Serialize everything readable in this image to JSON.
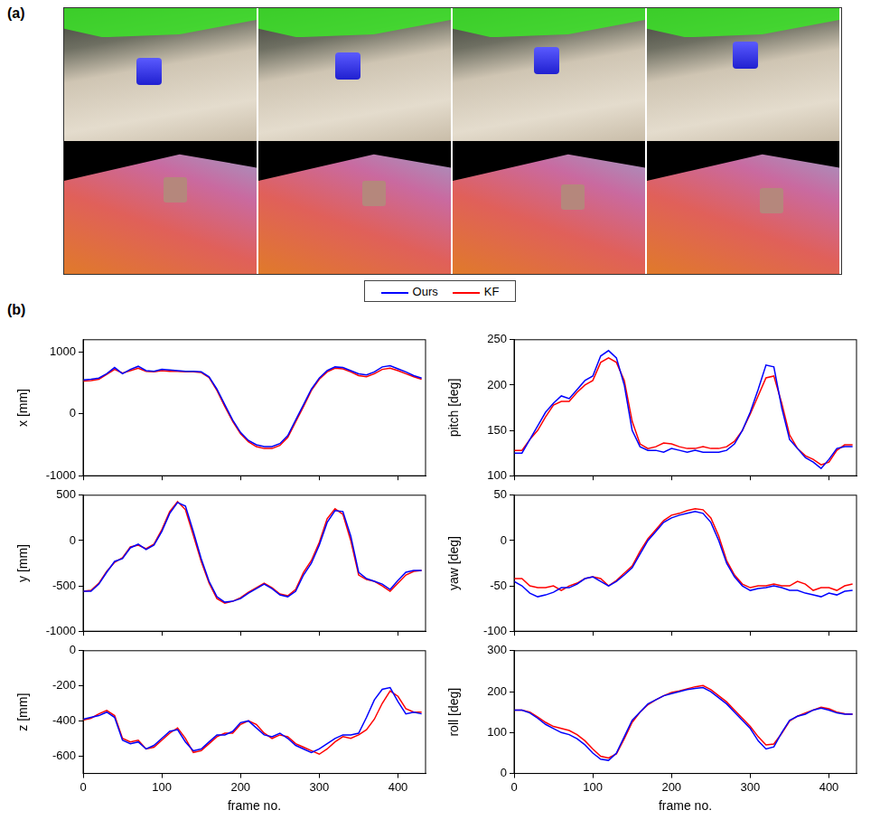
{
  "figure": {
    "panel_a_label": "(a)",
    "panel_b_label": "(b)",
    "legend": "top"
  },
  "chart_data": [
    {
      "type": "line",
      "y_label": "x [mm]",
      "xlim": [
        0,
        435
      ],
      "xticks": [
        0,
        100,
        200,
        300,
        400
      ],
      "ylim": [
        -1000,
        1200
      ],
      "yticks": [
        -1000,
        0,
        1000
      ],
      "grid": false,
      "tick_labels": "y",
      "x": [
        0,
        10,
        20,
        30,
        40,
        50,
        60,
        70,
        80,
        90,
        100,
        110,
        120,
        130,
        140,
        150,
        160,
        170,
        180,
        190,
        200,
        210,
        220,
        230,
        240,
        250,
        260,
        270,
        280,
        290,
        300,
        310,
        320,
        330,
        340,
        350,
        360,
        370,
        380,
        390,
        400,
        410,
        420,
        430
      ],
      "series": [
        {
          "name": "Ours",
          "color": "#0000ff",
          "values": [
            550,
            560,
            580,
            650,
            750,
            650,
            720,
            770,
            700,
            690,
            720,
            710,
            700,
            690,
            690,
            680,
            600,
            400,
            150,
            -100,
            -300,
            -430,
            -500,
            -530,
            -530,
            -480,
            -350,
            -100,
            150,
            400,
            580,
            700,
            760,
            750,
            700,
            650,
            630,
            680,
            760,
            780,
            730,
            680,
            620,
            580
          ]
        },
        {
          "name": "KF",
          "color": "#ff0000",
          "values": [
            530,
            540,
            560,
            640,
            720,
            660,
            700,
            740,
            690,
            680,
            700,
            690,
            690,
            680,
            680,
            670,
            590,
            380,
            120,
            -120,
            -320,
            -450,
            -530,
            -560,
            -560,
            -510,
            -380,
            -130,
            120,
            380,
            560,
            680,
            740,
            730,
            680,
            620,
            600,
            650,
            720,
            740,
            700,
            650,
            600,
            560
          ]
        }
      ]
    },
    {
      "type": "line",
      "y_label": "pitch [deg]",
      "xlim": [
        0,
        435
      ],
      "xticks": [
        0,
        100,
        200,
        300,
        400
      ],
      "ylim": [
        100,
        250
      ],
      "yticks": [
        100,
        150,
        200,
        250
      ],
      "grid": false,
      "tick_labels": "y",
      "x": [
        0,
        10,
        20,
        30,
        40,
        50,
        60,
        70,
        80,
        90,
        100,
        110,
        120,
        130,
        140,
        150,
        160,
        170,
        180,
        190,
        200,
        210,
        220,
        230,
        240,
        250,
        260,
        270,
        280,
        290,
        300,
        310,
        320,
        330,
        340,
        350,
        360,
        370,
        380,
        390,
        400,
        410,
        420,
        430
      ],
      "series": [
        {
          "name": "Ours",
          "color": "#0000ff",
          "values": [
            125,
            125,
            140,
            155,
            170,
            180,
            188,
            185,
            195,
            205,
            210,
            232,
            238,
            230,
            200,
            150,
            132,
            128,
            128,
            126,
            130,
            128,
            126,
            128,
            126,
            126,
            126,
            128,
            135,
            150,
            170,
            195,
            222,
            220,
            175,
            140,
            130,
            120,
            115,
            108,
            118,
            130,
            132,
            132
          ]
        },
        {
          "name": "KF",
          "color": "#ff0000",
          "values": [
            128,
            128,
            140,
            150,
            165,
            178,
            182,
            182,
            192,
            200,
            205,
            225,
            230,
            225,
            205,
            160,
            135,
            130,
            132,
            136,
            135,
            132,
            130,
            130,
            132,
            130,
            130,
            132,
            138,
            150,
            168,
            188,
            208,
            210,
            180,
            145,
            130,
            122,
            118,
            112,
            115,
            128,
            134,
            134
          ]
        }
      ]
    },
    {
      "type": "line",
      "y_label": "y [mm]",
      "xlim": [
        0,
        435
      ],
      "xticks": [
        0,
        100,
        200,
        300,
        400
      ],
      "ylim": [
        -1000,
        500
      ],
      "yticks": [
        -1000,
        -500,
        0,
        500
      ],
      "grid": false,
      "tick_labels": "y",
      "x": [
        0,
        10,
        20,
        30,
        40,
        50,
        60,
        70,
        80,
        90,
        100,
        110,
        120,
        130,
        140,
        150,
        160,
        170,
        180,
        190,
        200,
        210,
        220,
        230,
        240,
        250,
        260,
        270,
        280,
        290,
        300,
        310,
        320,
        330,
        340,
        350,
        360,
        370,
        380,
        390,
        400,
        410,
        420,
        430
      ],
      "series": [
        {
          "name": "Ours",
          "color": "#0000ff",
          "values": [
            -560,
            -560,
            -480,
            -350,
            -230,
            -200,
            -80,
            -40,
            -100,
            -50,
            100,
            300,
            420,
            380,
            100,
            -200,
            -450,
            -620,
            -680,
            -670,
            -640,
            -580,
            -530,
            -480,
            -530,
            -600,
            -620,
            -560,
            -380,
            -250,
            -50,
            200,
            330,
            320,
            50,
            -350,
            -420,
            -450,
            -480,
            -540,
            -440,
            -350,
            -330,
            -330
          ]
        },
        {
          "name": "KF",
          "color": "#ff0000",
          "values": [
            -560,
            -550,
            -470,
            -340,
            -240,
            -190,
            -70,
            -50,
            -90,
            -40,
            120,
            320,
            430,
            340,
            60,
            -230,
            -470,
            -640,
            -690,
            -670,
            -630,
            -570,
            -520,
            -470,
            -520,
            -590,
            -610,
            -540,
            -350,
            -220,
            -20,
            240,
            350,
            290,
            0,
            -380,
            -430,
            -450,
            -500,
            -560,
            -470,
            -380,
            -340,
            -330
          ]
        }
      ]
    },
    {
      "type": "line",
      "y_label": "yaw [deg]",
      "xlim": [
        0,
        435
      ],
      "xticks": [
        0,
        100,
        200,
        300,
        400
      ],
      "ylim": [
        -100,
        50
      ],
      "yticks": [
        -100,
        -50,
        0,
        50
      ],
      "grid": false,
      "tick_labels": "y",
      "x": [
        0,
        10,
        20,
        30,
        40,
        50,
        60,
        70,
        80,
        90,
        100,
        110,
        120,
        130,
        140,
        150,
        160,
        170,
        180,
        190,
        200,
        210,
        220,
        230,
        240,
        250,
        260,
        270,
        280,
        290,
        300,
        310,
        320,
        330,
        340,
        350,
        360,
        370,
        380,
        390,
        400,
        410,
        420,
        430
      ],
      "series": [
        {
          "name": "Ours",
          "color": "#0000ff",
          "values": [
            -45,
            -50,
            -58,
            -62,
            -60,
            -57,
            -52,
            -52,
            -48,
            -42,
            -40,
            -45,
            -50,
            -45,
            -38,
            -30,
            -15,
            0,
            10,
            20,
            25,
            28,
            30,
            32,
            30,
            20,
            0,
            -25,
            -40,
            -50,
            -55,
            -53,
            -52,
            -50,
            -52,
            -55,
            -55,
            -58,
            -60,
            -62,
            -58,
            -60,
            -56,
            -55
          ]
        },
        {
          "name": "KF",
          "color": "#ff0000",
          "values": [
            -42,
            -42,
            -50,
            -52,
            -52,
            -50,
            -55,
            -50,
            -47,
            -42,
            -40,
            -42,
            -50,
            -44,
            -36,
            -28,
            -12,
            2,
            12,
            22,
            28,
            30,
            33,
            35,
            34,
            25,
            5,
            -22,
            -38,
            -48,
            -52,
            -50,
            -50,
            -48,
            -50,
            -50,
            -45,
            -48,
            -55,
            -52,
            -52,
            -55,
            -50,
            -48
          ]
        }
      ]
    },
    {
      "type": "line",
      "y_label": "z [mm]",
      "x_label": "frame no.",
      "xlim": [
        0,
        435
      ],
      "xticks": [
        0,
        100,
        200,
        300,
        400
      ],
      "ylim": [
        -700,
        0
      ],
      "yticks": [
        -600,
        -400,
        -200,
        0
      ],
      "grid": false,
      "x": [
        0,
        10,
        20,
        30,
        40,
        50,
        60,
        70,
        80,
        90,
        100,
        110,
        120,
        130,
        140,
        150,
        160,
        170,
        180,
        190,
        200,
        210,
        220,
        230,
        240,
        250,
        260,
        270,
        280,
        290,
        300,
        310,
        320,
        330,
        340,
        350,
        360,
        370,
        380,
        390,
        400,
        410,
        420,
        430
      ],
      "series": [
        {
          "name": "Ours",
          "color": "#0000ff",
          "values": [
            -390,
            -380,
            -370,
            -350,
            -380,
            -510,
            -530,
            -520,
            -560,
            -540,
            -500,
            -460,
            -450,
            -520,
            -570,
            -560,
            -520,
            -480,
            -480,
            -460,
            -410,
            -400,
            -440,
            -480,
            -490,
            -470,
            -500,
            -540,
            -560,
            -580,
            -560,
            -530,
            -500,
            -480,
            -480,
            -470,
            -380,
            -280,
            -220,
            -210,
            -290,
            -360,
            -350,
            -360
          ]
        },
        {
          "name": "KF",
          "color": "#ff0000",
          "values": [
            -395,
            -385,
            -360,
            -340,
            -370,
            -500,
            -520,
            -510,
            -560,
            -550,
            -510,
            -470,
            -440,
            -500,
            -580,
            -570,
            -530,
            -490,
            -470,
            -470,
            -420,
            -400,
            -420,
            -470,
            -500,
            -480,
            -490,
            -530,
            -550,
            -570,
            -590,
            -560,
            -520,
            -490,
            -500,
            -480,
            -450,
            -390,
            -300,
            -230,
            -260,
            -330,
            -350,
            -350
          ]
        }
      ]
    },
    {
      "type": "line",
      "y_label": "roll [deg]",
      "x_label": "frame no.",
      "xlim": [
        0,
        435
      ],
      "xticks": [
        0,
        100,
        200,
        300,
        400
      ],
      "ylim": [
        0,
        300
      ],
      "yticks": [
        0,
        100,
        200,
        300
      ],
      "grid": false,
      "x": [
        0,
        10,
        20,
        30,
        40,
        50,
        60,
        70,
        80,
        90,
        100,
        110,
        120,
        130,
        140,
        150,
        160,
        170,
        180,
        190,
        200,
        210,
        220,
        230,
        240,
        250,
        260,
        270,
        280,
        290,
        300,
        310,
        320,
        330,
        340,
        350,
        360,
        370,
        380,
        390,
        400,
        410,
        420,
        430
      ],
      "series": [
        {
          "name": "Ours",
          "color": "#0000ff",
          "values": [
            155,
            155,
            148,
            135,
            120,
            110,
            100,
            95,
            85,
            70,
            50,
            35,
            32,
            50,
            90,
            130,
            150,
            170,
            180,
            190,
            195,
            200,
            205,
            208,
            210,
            200,
            185,
            170,
            150,
            130,
            110,
            80,
            60,
            65,
            100,
            130,
            140,
            145,
            155,
            160,
            155,
            148,
            145,
            145
          ]
        },
        {
          "name": "KF",
          "color": "#ff0000",
          "values": [
            155,
            155,
            150,
            138,
            125,
            115,
            110,
            105,
            95,
            80,
            60,
            42,
            38,
            48,
            85,
            125,
            150,
            168,
            180,
            190,
            198,
            202,
            207,
            212,
            215,
            205,
            190,
            175,
            155,
            135,
            115,
            90,
            70,
            72,
            98,
            128,
            140,
            148,
            155,
            162,
            158,
            150,
            146,
            145
          ]
        }
      ]
    }
  ]
}
